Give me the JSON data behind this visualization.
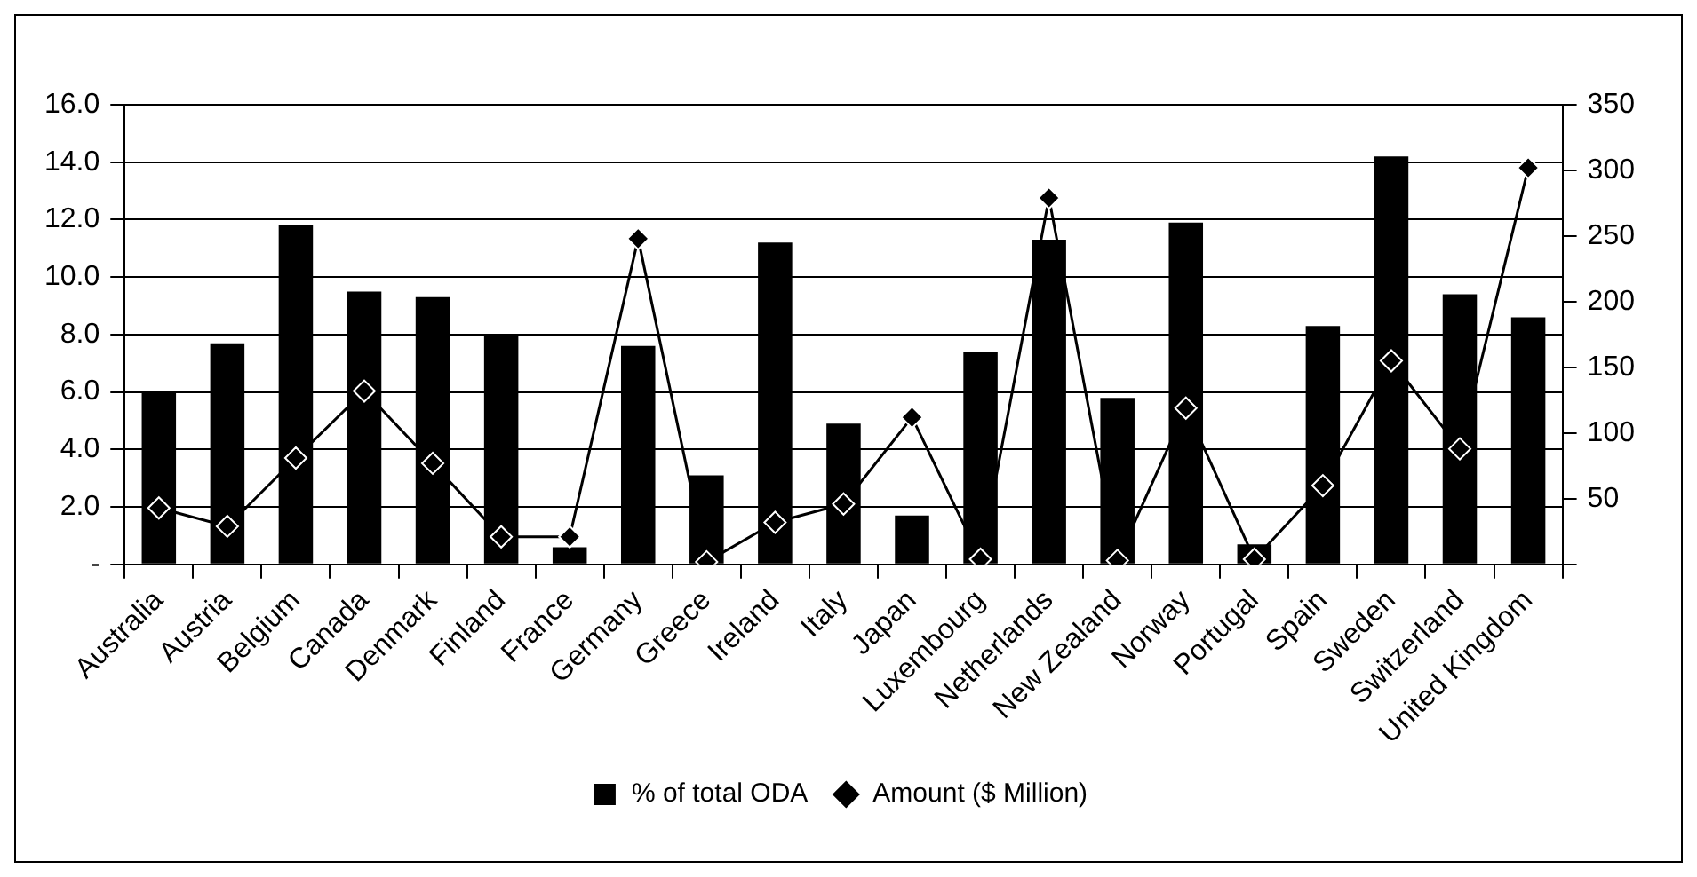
{
  "chart_data": {
    "type": "bar",
    "categories": [
      "Australia",
      "Austria",
      "Belgium",
      "Canada",
      "Denmark",
      "Finland",
      "France",
      "Germany",
      "Greece",
      "Ireland",
      "Italy",
      "Japan",
      "Luxembourg",
      "Netherlands",
      "New Zealand",
      "Norway",
      "Portugal",
      "Spain",
      "Sweden",
      "Switzerland",
      "United Kingdom"
    ],
    "series": [
      {
        "name": "% of total ODA",
        "color": "#000000",
        "values": [
          6.0,
          7.7,
          11.8,
          9.5,
          9.3,
          8.0,
          0.6,
          7.6,
          3.1,
          11.2,
          4.9,
          1.7,
          7.4,
          11.3,
          5.8,
          11.9,
          0.7,
          8.3,
          14.2,
          9.4,
          8.6
        ]
      },
      {
        "name": "Amount ($ Million)",
        "type": "line",
        "axis": "y2",
        "color": "#000000",
        "values": [
          43,
          29,
          81,
          132,
          77,
          21,
          21,
          248,
          2,
          32,
          46,
          112,
          4,
          279,
          3,
          119,
          4,
          60,
          155,
          88,
          302
        ]
      }
    ],
    "marker": "diamond",
    "line_style": "solid",
    "ylim": [
      0,
      16
    ],
    "yticks": [
      {
        "value": 0,
        "label": "-"
      },
      {
        "value": 2,
        "label": "2.0"
      },
      {
        "value": 4,
        "label": "4.0"
      },
      {
        "value": 6,
        "label": "6.0"
      },
      {
        "value": 8,
        "label": "8.0"
      },
      {
        "value": 10,
        "label": "10.0"
      },
      {
        "value": 12,
        "label": "12.0"
      },
      {
        "value": 14,
        "label": "14.0"
      },
      {
        "value": 16,
        "label": "16.0"
      }
    ],
    "y2lim": [
      0,
      350
    ],
    "y2ticks": [
      {
        "value": 0,
        "label": null
      },
      50,
      100,
      150,
      200,
      250,
      300,
      350
    ],
    "grid": "y",
    "legend": "bottom"
  }
}
